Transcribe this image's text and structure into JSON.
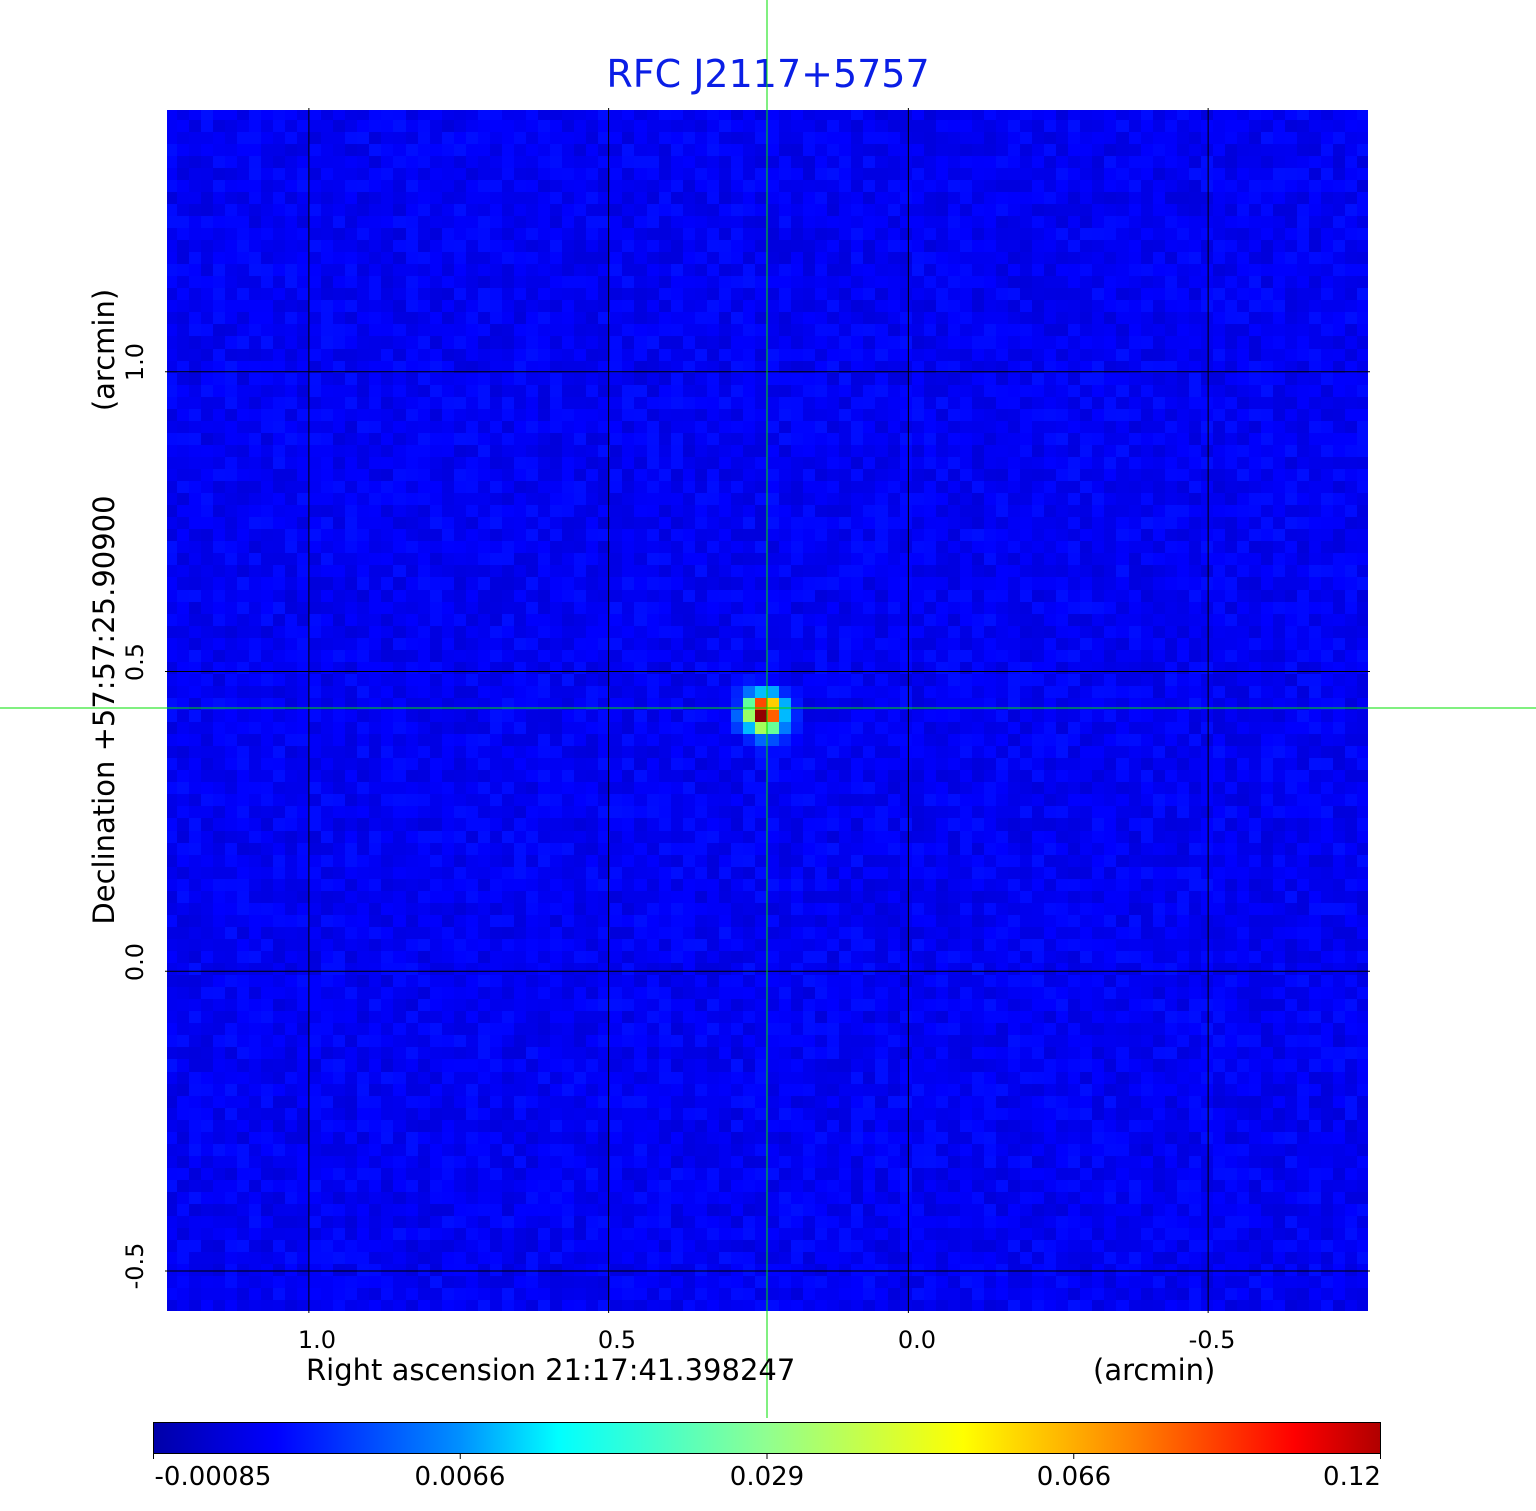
{
  "chart_data": {
    "type": "heatmap",
    "title": "RFC J2117+5757",
    "xlabel": "Right ascension  21:17:41.398247",
    "xunit": "(arcmin)",
    "ylabel": "Declination  +57:57:25.90900",
    "yunit": "(arcmin)",
    "xlim": [
      1.24,
      -0.77
    ],
    "ylim": [
      -0.57,
      1.44
    ],
    "x_ticks": [
      "1.0",
      "0.5",
      "0.0",
      "-0.5"
    ],
    "x_tick_values": [
      1.0,
      0.5,
      0.0,
      -0.5
    ],
    "y_ticks": [
      "1.0",
      "0.5",
      "0.0",
      "-0.5"
    ],
    "y_tick_values": [
      1.0,
      0.5,
      0.0,
      -0.5
    ],
    "grid": true,
    "colormap": "jet",
    "colorbar": {
      "ticks": [
        "-0.00085",
        "0.0066",
        "0.029",
        "0.066",
        "0.12"
      ],
      "range": [
        -0.00085,
        0.12
      ],
      "placement": "bottom"
    },
    "source_peak": {
      "x": 0.24,
      "y": 0.43,
      "value": 0.12
    },
    "crosshair": {
      "x": 0.24,
      "y": 0.43,
      "color": "#00ff00"
    },
    "background_color": "#0a28f0"
  }
}
